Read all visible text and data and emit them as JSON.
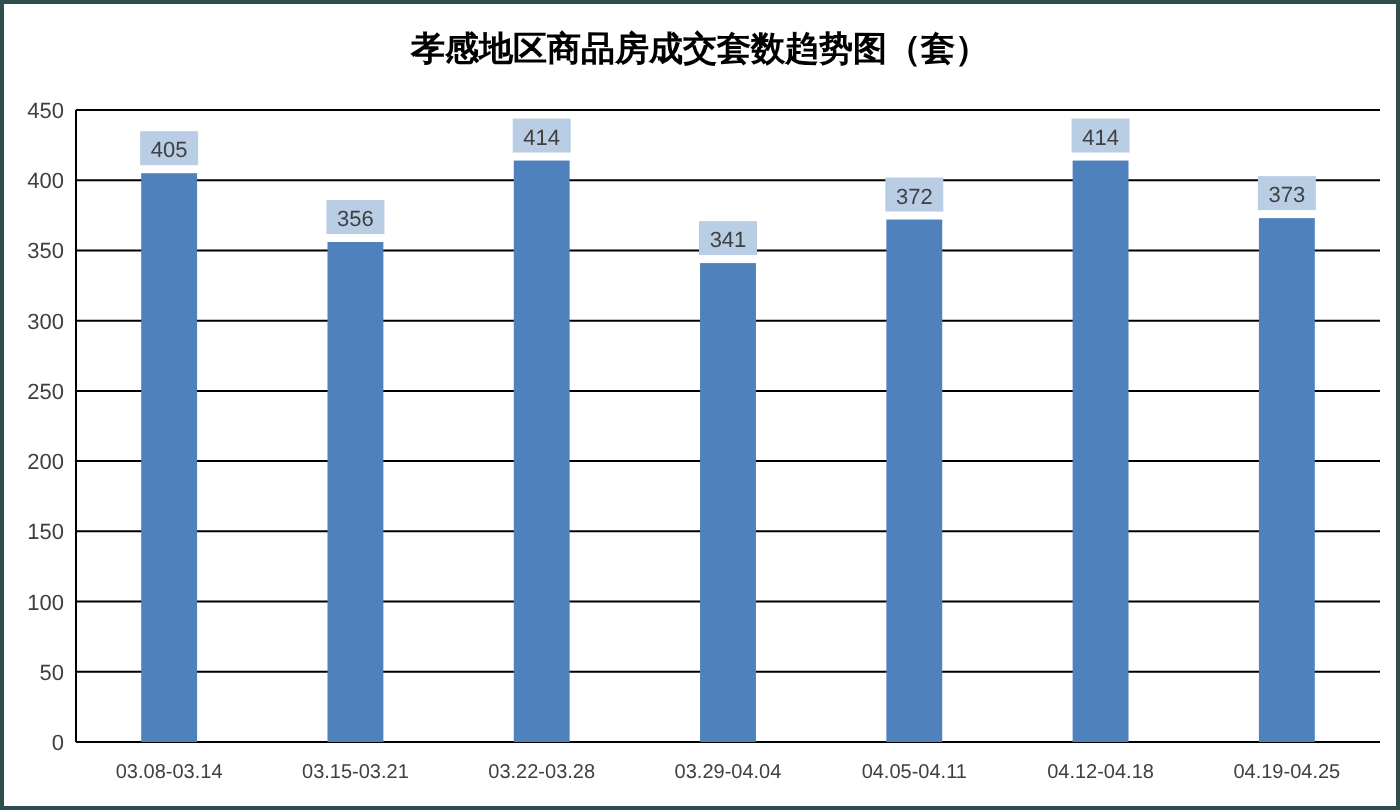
{
  "chart_data": {
    "type": "bar",
    "title": "孝感地区商品房成交套数趋势图（套）",
    "categories": [
      "03.08-03.14",
      "03.15-03.21",
      "03.22-03.28",
      "03.29-04.04",
      "04.05-04.11",
      "04.12-04.18",
      "04.19-04.25"
    ],
    "values": [
      405,
      356,
      414,
      341,
      372,
      414,
      373
    ],
    "color": "#4f81bd",
    "ylim": [
      0,
      450
    ],
    "yticks": [
      0,
      50,
      100,
      150,
      200,
      250,
      300,
      350,
      400,
      450
    ],
    "grid": "y",
    "data_labels": true
  }
}
